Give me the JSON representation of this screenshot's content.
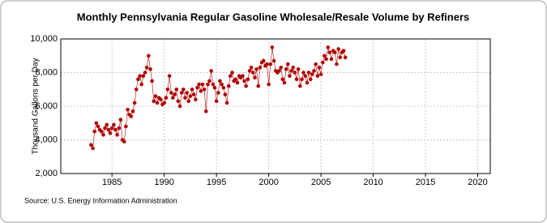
{
  "chart_data": {
    "type": "line",
    "title": "Monthly Pennsylvania Regular Gasoline Wholesale/Resale Volume by Refiners",
    "y_label": "Thousand Gallons per Day",
    "source": "Source: U.S. Energy Information Administration",
    "color": "#b00000",
    "grid": true,
    "xlim": [
      1980.1,
      2021.2
    ],
    "xticks": [
      1985,
      1990,
      1995,
      2000,
      2005,
      2010,
      2015,
      2020
    ],
    "ylim": [
      2000,
      10000
    ],
    "yticks": [
      {
        "value": 2000,
        "label": "2,000"
      },
      {
        "value": 4000,
        "label": "4,000"
      },
      {
        "value": 6000,
        "label": "6,000"
      },
      {
        "value": 8000,
        "label": "8,000"
      },
      {
        "value": 10000,
        "label": "10,000"
      }
    ],
    "x": [
      1983,
      1983.17,
      1983.33,
      1983.5,
      1983.67,
      1983.83,
      1984,
      1984.17,
      1984.33,
      1984.5,
      1984.67,
      1984.83,
      1985,
      1985.17,
      1985.33,
      1985.5,
      1985.67,
      1985.83,
      1986,
      1986.17,
      1986.33,
      1986.5,
      1986.67,
      1986.83,
      1987,
      1987.17,
      1987.33,
      1987.5,
      1987.67,
      1987.83,
      1988,
      1988.17,
      1988.33,
      1988.5,
      1988.67,
      1988.83,
      1989,
      1989.17,
      1989.33,
      1989.5,
      1989.67,
      1989.83,
      1990,
      1990.17,
      1990.33,
      1990.5,
      1990.67,
      1990.83,
      1991,
      1991.17,
      1991.33,
      1991.5,
      1991.67,
      1991.83,
      1992,
      1992.17,
      1992.33,
      1992.5,
      1992.67,
      1992.83,
      1993,
      1993.17,
      1993.33,
      1993.5,
      1993.67,
      1993.83,
      1994,
      1994.17,
      1994.33,
      1994.5,
      1994.67,
      1994.83,
      1995,
      1995.17,
      1995.33,
      1995.5,
      1995.67,
      1995.83,
      1996,
      1996.17,
      1996.33,
      1996.5,
      1996.67,
      1996.83,
      1997,
      1997.17,
      1997.33,
      1997.5,
      1997.67,
      1997.83,
      1998,
      1998.17,
      1998.33,
      1998.5,
      1998.67,
      1998.83,
      1999,
      1999.17,
      1999.33,
      1999.5,
      1999.67,
      1999.83,
      2000,
      2000.17,
      2000.33,
      2000.5,
      2000.67,
      2000.83,
      2001,
      2001.17,
      2001.33,
      2001.5,
      2001.67,
      2001.83,
      2002,
      2002.17,
      2002.33,
      2002.5,
      2002.67,
      2002.83,
      2003,
      2003.17,
      2003.33,
      2003.5,
      2003.67,
      2003.83,
      2004,
      2004.17,
      2004.33,
      2004.5,
      2004.67,
      2004.83,
      2005,
      2005.17,
      2005.33,
      2005.5,
      2005.67,
      2005.83,
      2006,
      2006.17,
      2006.33,
      2006.5,
      2006.67,
      2006.83,
      2007,
      2007.17,
      2007.33
    ],
    "values": [
      3700,
      3500,
      4500,
      5000,
      4800,
      4600,
      4500,
      4300,
      4700,
      4900,
      4600,
      4400,
      4700,
      4900,
      4600,
      4300,
      4700,
      5200,
      4000,
      3900,
      4800,
      5800,
      5500,
      5400,
      5700,
      6200,
      7000,
      7600,
      7800,
      7300,
      7800,
      8000,
      8300,
      9000,
      8200,
      7500,
      6300,
      6600,
      6200,
      6500,
      6400,
      6100,
      6200,
      6500,
      7000,
      7800,
      6800,
      6500,
      6700,
      7000,
      6300,
      6000,
      6800,
      7000,
      6500,
      6800,
      6300,
      6600,
      7000,
      6700,
      6400,
      7100,
      7300,
      6900,
      7300,
      7000,
      5700,
      7300,
      7500,
      8100,
      7300,
      7100,
      6300,
      6800,
      7500,
      7300,
      7100,
      6700,
      6200,
      7200,
      7800,
      8000,
      7500,
      7600,
      7400,
      7800,
      7700,
      7800,
      7500,
      7200,
      7600,
      8100,
      8300,
      8000,
      7700,
      8200,
      7200,
      8300,
      8600,
      8700,
      8400,
      8500,
      7300,
      8500,
      9500,
      8700,
      8100,
      8000,
      8100,
      8300,
      7600,
      7400,
      8200,
      8500,
      7800,
      8100,
      8300,
      8000,
      7600,
      8200,
      7200,
      7600,
      8000,
      7800,
      7400,
      8000,
      7600,
      7900,
      8100,
      8500,
      7800,
      8300,
      7900,
      8600,
      9000,
      8800,
      9500,
      9200,
      8800,
      9300,
      9200,
      8500,
      9400,
      8900,
      9200,
      9300,
      8900
    ]
  }
}
